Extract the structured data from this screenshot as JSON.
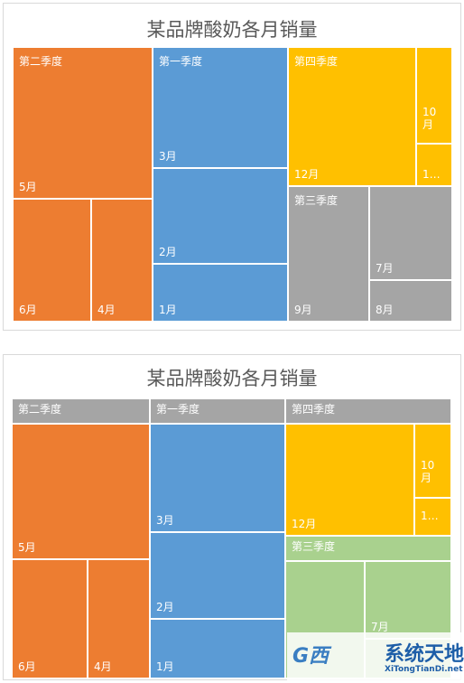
{
  "chart_data": [
    {
      "type": "treemap",
      "title": "某品牌酸奶各月销量",
      "label_style": "header-inside",
      "groups": [
        {
          "name": "第二季度",
          "color": "#ED7D31",
          "months": [
            {
              "label": "5月",
              "value": 10
            },
            {
              "label": "6月",
              "value": 4.2
            },
            {
              "label": "4月",
              "value": 3.6
            }
          ]
        },
        {
          "name": "第一季度",
          "color": "#5B9BD5",
          "months": [
            {
              "label": "3月",
              "value": 6.5
            },
            {
              "label": "2月",
              "value": 5.1
            },
            {
              "label": "1月",
              "value": 3.2
            }
          ]
        },
        {
          "name": "第四季度",
          "color": "#FFC000",
          "months": [
            {
              "label": "12月",
              "value": 6.5
            },
            {
              "label": "10\n月",
              "value": 1.6
            },
            {
              "label": "1…",
              "value": 0.8
            }
          ]
        },
        {
          "name": "第三季度",
          "color": "#A5A5A5",
          "months": [
            {
              "label": "9月",
              "value": 4.0
            },
            {
              "label": "7月",
              "value": 3.2
            },
            {
              "label": "8月",
              "value": 1.3
            }
          ]
        }
      ]
    },
    {
      "type": "treemap",
      "title": "某品牌酸奶各月销量",
      "label_style": "banner",
      "header_color": "#A5A5A5",
      "groups": [
        {
          "name": "第二季度",
          "color": "#ED7D31",
          "months": [
            {
              "label": "5月",
              "value": 10
            },
            {
              "label": "6月",
              "value": 4.2
            },
            {
              "label": "4月",
              "value": 3.6
            }
          ]
        },
        {
          "name": "第一季度",
          "color": "#5B9BD5",
          "months": [
            {
              "label": "3月",
              "value": 6.5
            },
            {
              "label": "2月",
              "value": 5.1
            },
            {
              "label": "1月",
              "value": 3.2
            }
          ]
        },
        {
          "name": "第四季度",
          "color": "#FFC000",
          "months": [
            {
              "label": "12月",
              "value": 6.5
            },
            {
              "label": "10\n月",
              "value": 1.6
            },
            {
              "label": "1…",
              "value": 0.8
            }
          ]
        },
        {
          "name": "第三季度",
          "color": "#A9D18E",
          "header_color": "#A9D18E",
          "months": [
            {
              "label": "",
              "value": 4.0
            },
            {
              "label": "7月",
              "value": 3.2
            },
            {
              "label": "",
              "value": 1.3
            }
          ]
        }
      ]
    }
  ],
  "watermark": {
    "logo_text": "G西",
    "name": "系统天地",
    "url": "XiTongTianDi.net"
  }
}
